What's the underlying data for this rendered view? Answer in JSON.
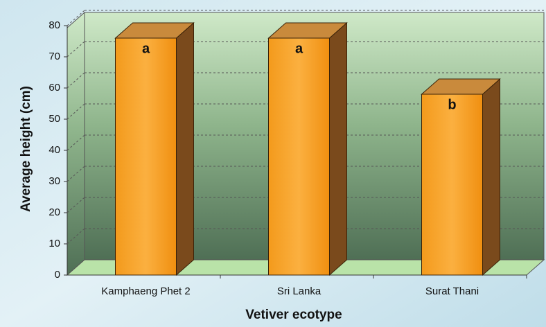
{
  "chart_data": {
    "type": "bar3d",
    "x_label": "Vetiver ecotype",
    "y_label": "Average height (cm)",
    "categories": [
      "Kamphaeng Phet 2",
      "Sri Lanka",
      "Surat Thani"
    ],
    "values": [
      76,
      76,
      58
    ],
    "annotations": [
      "a",
      "a",
      "b"
    ],
    "color": "#f5a623",
    "ylim": [
      0,
      80
    ],
    "yticks": [
      0,
      10,
      20,
      30,
      40,
      50,
      60,
      70,
      80
    ],
    "grid": true
  }
}
